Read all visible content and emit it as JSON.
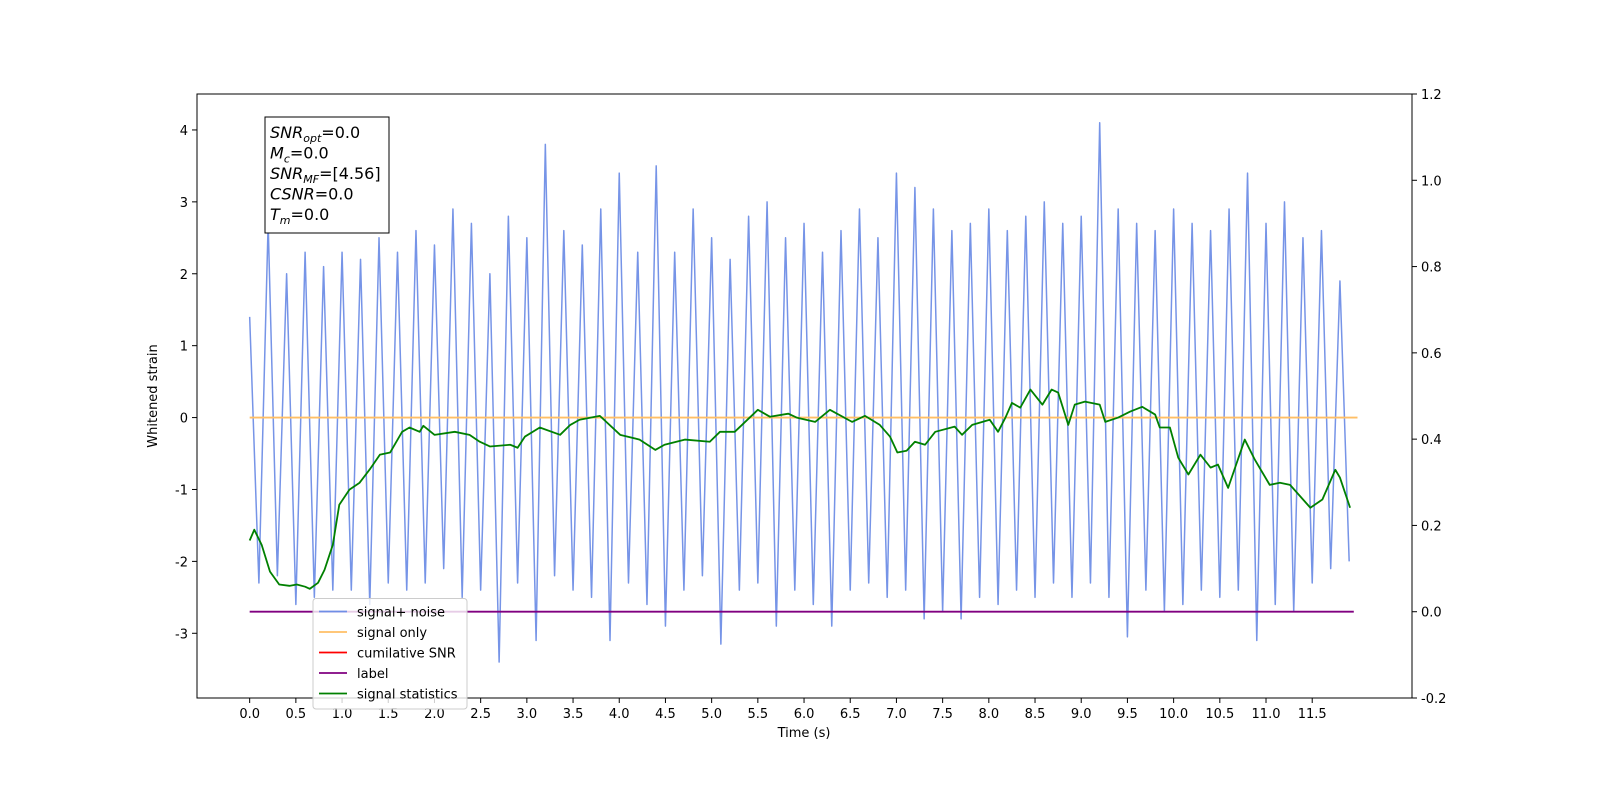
{
  "chart_data": {
    "type": "line",
    "xlabel": "Time (s)",
    "ylabel": "Whitened strain",
    "xlim": [
      -0.57,
      12.58
    ],
    "ylim": [
      -3.9,
      4.5
    ],
    "y2lim": [
      -0.2,
      1.2
    ],
    "xticks": [
      {
        "value": 0,
        "label": "0.0"
      },
      0.5,
      {
        "value": 1,
        "label": "1.0"
      },
      1.5,
      {
        "value": 2,
        "label": "2.0"
      },
      2.5,
      {
        "value": 3,
        "label": "3.0"
      },
      3.5,
      {
        "value": 4,
        "label": "4.0"
      },
      4.5,
      {
        "value": 5,
        "label": "5.0"
      },
      5.5,
      {
        "value": 6,
        "label": "6.0"
      },
      6.5,
      {
        "value": 7,
        "label": "7.0"
      },
      7.5,
      {
        "value": 8,
        "label": "8.0"
      },
      8.5,
      {
        "value": 9,
        "label": "9.0"
      },
      9.5,
      {
        "value": 10,
        "label": "10.0"
      },
      10.5,
      {
        "value": 11,
        "label": "11.0"
      },
      11.5
    ],
    "yticks": [
      -3,
      -2,
      -1,
      0,
      1,
      2,
      3,
      4
    ],
    "y2ticks": [
      -0.2,
      {
        "value": 0,
        "label": "0.0"
      },
      0.2,
      0.4,
      0.6,
      0.8,
      {
        "value": 1,
        "label": "1.0"
      },
      1.2
    ],
    "legend": "lower left",
    "annotation": [
      {
        "main": "SNR",
        "sub": "opt",
        "rest": "=0.0"
      },
      {
        "main": "M",
        "sub": "c",
        "rest": "=0.0"
      },
      {
        "main": "SNR",
        "sub": "MF",
        "rest": "=[4.56]"
      },
      {
        "main": "CSNR",
        "sub": "",
        "rest": "=0.0"
      },
      {
        "main": "T",
        "sub": "m",
        "rest": "=0.0"
      }
    ],
    "series": [
      {
        "name": "signal+ noise",
        "color": "#6f8ee6",
        "x": [
          0.0,
          0.1,
          0.2,
          0.3,
          0.4,
          0.5,
          0.6,
          0.7,
          0.8,
          0.9,
          1.0,
          1.1,
          1.2,
          1.3,
          1.4,
          1.5,
          1.6,
          1.7,
          1.8,
          1.9,
          2.0,
          2.1,
          2.2,
          2.3,
          2.4,
          2.5,
          2.6,
          2.7,
          2.8,
          2.9,
          3.0,
          3.1,
          3.2,
          3.3,
          3.4,
          3.5,
          3.6,
          3.7,
          3.8,
          3.9,
          4.0,
          4.1,
          4.2,
          4.3,
          4.4,
          4.5,
          4.6,
          4.7,
          4.8,
          4.9,
          5.0,
          5.1,
          5.2,
          5.3,
          5.4,
          5.5,
          5.6,
          5.7,
          5.8,
          5.9,
          6.0,
          6.1,
          6.2,
          6.3,
          6.4,
          6.5,
          6.6,
          6.7,
          6.8,
          6.9,
          7.0,
          7.1,
          7.2,
          7.3,
          7.4,
          7.5,
          7.6,
          7.7,
          7.8,
          7.9,
          8.0,
          8.1,
          8.2,
          8.3,
          8.4,
          8.5,
          8.6,
          8.7,
          8.8,
          8.9,
          9.0,
          9.1,
          9.2,
          9.3,
          9.4,
          9.5,
          9.6,
          9.7,
          9.8,
          9.9,
          10.0,
          10.1,
          10.2,
          10.3,
          10.4,
          10.5,
          10.6,
          10.7,
          10.8,
          10.9,
          11.0,
          11.1,
          11.2,
          11.3,
          11.4,
          11.5,
          11.6,
          11.7,
          11.8,
          11.9
        ],
        "values": [
          1.4,
          -2.3,
          2.7,
          -2.2,
          2.0,
          -2.6,
          2.3,
          -2.5,
          2.1,
          -2.4,
          2.3,
          -2.4,
          2.2,
          -2.6,
          2.5,
          -2.3,
          2.3,
          -2.4,
          2.6,
          -2.3,
          2.4,
          -2.1,
          2.9,
          -2.5,
          2.7,
          -2.4,
          2.0,
          -3.4,
          2.8,
          -2.3,
          2.5,
          -3.1,
          3.8,
          -2.2,
          2.6,
          -2.4,
          2.4,
          -2.5,
          2.9,
          -3.1,
          3.4,
          -2.3,
          2.3,
          -2.6,
          3.5,
          -2.9,
          2.3,
          -2.4,
          2.9,
          -2.2,
          2.5,
          -3.15,
          2.2,
          -2.4,
          2.8,
          -2.3,
          3.0,
          -2.9,
          2.5,
          -2.4,
          2.7,
          -2.6,
          2.3,
          -2.9,
          2.6,
          -2.4,
          2.9,
          -2.3,
          2.5,
          -2.5,
          3.4,
          -2.4,
          3.2,
          -2.8,
          2.9,
          -2.7,
          2.6,
          -2.8,
          2.7,
          -2.5,
          2.9,
          -2.6,
          2.6,
          -2.4,
          2.8,
          -2.5,
          3.0,
          -2.3,
          2.7,
          -2.5,
          2.8,
          -2.3,
          4.1,
          -2.5,
          2.9,
          -3.05,
          2.7,
          -2.4,
          2.6,
          -2.7,
          2.9,
          -2.6,
          2.7,
          -2.4,
          2.6,
          -2.5,
          2.9,
          -2.4,
          3.4,
          -3.1,
          2.7,
          -2.6,
          3.0,
          -2.7,
          2.5,
          -2.3,
          2.6,
          -2.1,
          1.9,
          -2.0
        ]
      },
      {
        "name": "signal only",
        "color": "#ffbf66",
        "x": [
          0,
          11.99
        ],
        "values": [
          0,
          0
        ]
      },
      {
        "name": "cumilative SNR",
        "color": "#ff0000",
        "x": [],
        "values": []
      },
      {
        "name": "label",
        "color": "#800080",
        "axis": "y2",
        "x": [
          0,
          11.95
        ],
        "values": [
          0,
          0
        ]
      },
      {
        "name": "signal statistics",
        "color": "#008000",
        "axis": "y2",
        "x": [
          0,
          0.05,
          0.13,
          0.22,
          0.32,
          0.43,
          0.51,
          0.6,
          0.65,
          0.74,
          0.81,
          0.9,
          0.97,
          1.08,
          1.19,
          1.3,
          1.41,
          1.52,
          1.65,
          1.73,
          1.84,
          1.88,
          2.0,
          2.22,
          2.38,
          2.49,
          2.6,
          2.82,
          2.9,
          2.98,
          3.14,
          3.36,
          3.47,
          3.57,
          3.79,
          4.01,
          4.22,
          4.39,
          4.49,
          4.71,
          4.98,
          5.09,
          5.25,
          5.5,
          5.63,
          5.83,
          5.92,
          6.12,
          6.28,
          6.52,
          6.66,
          6.82,
          6.93,
          7.01,
          7.11,
          7.2,
          7.31,
          7.42,
          7.63,
          7.71,
          7.82,
          8.01,
          8.1,
          8.18,
          8.25,
          8.34,
          8.45,
          8.58,
          8.68,
          8.75,
          8.86,
          8.93,
          9.04,
          9.2,
          9.26,
          9.4,
          9.53,
          9.66,
          9.8,
          9.85,
          9.96,
          10.05,
          10.16,
          10.29,
          10.4,
          10.48,
          10.59,
          10.77,
          10.88,
          11.04,
          11.15,
          11.26,
          11.48,
          11.61,
          11.75,
          11.8,
          11.91
        ],
        "values": [
          0.165,
          0.19,
          0.155,
          0.093,
          0.063,
          0.06,
          0.063,
          0.058,
          0.053,
          0.067,
          0.097,
          0.155,
          0.248,
          0.283,
          0.299,
          0.33,
          0.364,
          0.369,
          0.417,
          0.427,
          0.417,
          0.431,
          0.41,
          0.417,
          0.41,
          0.394,
          0.383,
          0.387,
          0.38,
          0.406,
          0.427,
          0.41,
          0.433,
          0.445,
          0.454,
          0.41,
          0.399,
          0.375,
          0.387,
          0.399,
          0.394,
          0.417,
          0.417,
          0.468,
          0.452,
          0.459,
          0.45,
          0.44,
          0.468,
          0.44,
          0.454,
          0.433,
          0.406,
          0.369,
          0.373,
          0.394,
          0.387,
          0.417,
          0.429,
          0.41,
          0.433,
          0.445,
          0.417,
          0.45,
          0.484,
          0.473,
          0.515,
          0.48,
          0.515,
          0.508,
          0.433,
          0.48,
          0.487,
          0.48,
          0.44,
          0.45,
          0.464,
          0.475,
          0.457,
          0.427,
          0.427,
          0.357,
          0.318,
          0.364,
          0.334,
          0.341,
          0.287,
          0.399,
          0.352,
          0.294,
          0.299,
          0.294,
          0.241,
          0.26,
          0.329,
          0.311,
          0.241
        ]
      }
    ]
  }
}
